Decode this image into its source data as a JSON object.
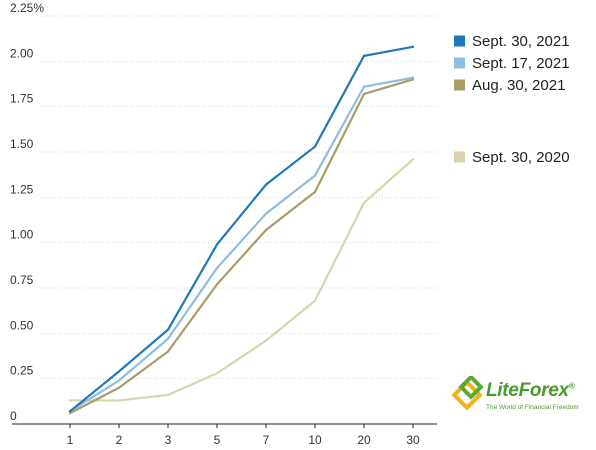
{
  "chart_data": {
    "type": "line",
    "categories": [
      "1",
      "2",
      "3",
      "5",
      "7",
      "10",
      "20",
      "30"
    ],
    "y_ticks": [
      {
        "value": 0,
        "label": "0"
      },
      {
        "value": 0.25,
        "label": "0.25"
      },
      {
        "value": 0.5,
        "label": "0.50"
      },
      {
        "value": 0.75,
        "label": "0.75"
      },
      {
        "value": 1.0,
        "label": "1.00"
      },
      {
        "value": 1.25,
        "label": "1.25"
      },
      {
        "value": 1.5,
        "label": "1.50"
      },
      {
        "value": 1.75,
        "label": "1.75"
      },
      {
        "value": 2.0,
        "label": "2.00"
      },
      {
        "value": 2.25,
        "label": "2.25%"
      }
    ],
    "ylim": [
      0,
      2.25
    ],
    "grid": true,
    "legend_position": "right",
    "series": [
      {
        "name": "Sept. 30, 2021",
        "color": "#1f78b8",
        "values": [
          0.07,
          0.29,
          0.52,
          0.99,
          1.32,
          1.53,
          2.03,
          2.08
        ]
      },
      {
        "name": "Sept. 17, 2021",
        "color": "#8fbde0",
        "values": [
          0.07,
          0.24,
          0.47,
          0.86,
          1.16,
          1.37,
          1.86,
          1.91
        ]
      },
      {
        "name": "Aug. 30, 2021",
        "color": "#a99c66",
        "values": [
          0.06,
          0.2,
          0.4,
          0.77,
          1.07,
          1.28,
          1.82,
          1.9
        ]
      },
      {
        "name": "Sept. 30, 2020",
        "color": "#d9d4ae",
        "values": [
          0.13,
          0.13,
          0.16,
          0.28,
          0.46,
          0.68,
          1.22,
          1.46
        ]
      }
    ]
  },
  "watermark": {
    "brand": "LiteForex",
    "registered": "®",
    "tagline": "The World of Financial Freedom",
    "icon": "liteforex-logo-icon"
  }
}
